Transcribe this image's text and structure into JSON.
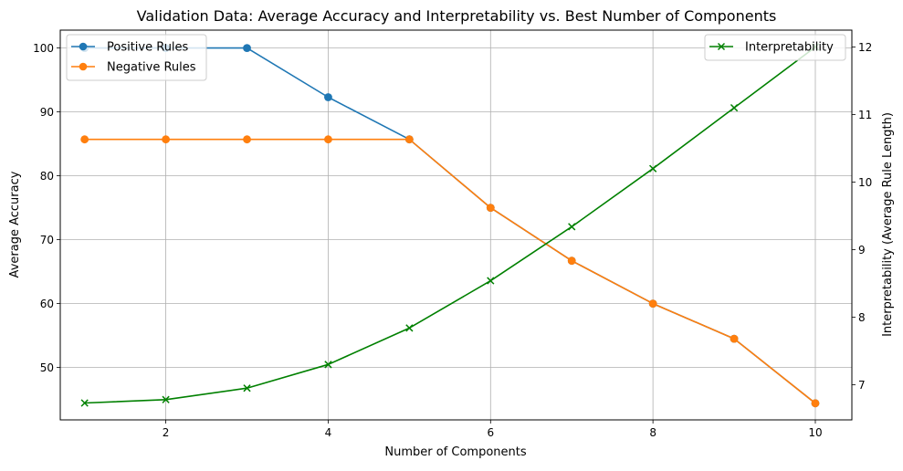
{
  "chart_data": {
    "type": "line",
    "title": "Validation Data: Average Accuracy and Interpretability vs. Best Number of Components",
    "xlabel": "Number of Components",
    "ylabel": "Average Accuracy",
    "y2label": "Interpretability (Average Rule Length)",
    "x": [
      1,
      2,
      3,
      4,
      5,
      6,
      7,
      8,
      9,
      10
    ],
    "xlim": [
      0.7,
      10.45
    ],
    "ylim": [
      41.8,
      102.8
    ],
    "y2lim": [
      6.48,
      12.25
    ],
    "xticks": [
      "2",
      "4",
      "6",
      "8",
      "10"
    ],
    "yticks": [
      "50",
      "60",
      "70",
      "80",
      "90",
      "100"
    ],
    "y2ticks": [
      "7",
      "8",
      "9",
      "10",
      "11",
      "12"
    ],
    "grid": true,
    "series": [
      {
        "name": "Positive Rules",
        "axis": "left",
        "color": "#1f77b4",
        "marker": "circle",
        "values": [
          100,
          100,
          100,
          92.3,
          85.7,
          75.0,
          66.7,
          60.0,
          54.5,
          44.4
        ]
      },
      {
        "name": "Negative Rules",
        "axis": "left",
        "color": "#ff7f0e",
        "marker": "circle",
        "values": [
          85.7,
          85.7,
          85.7,
          85.7,
          85.7,
          75.0,
          66.7,
          60.0,
          54.5,
          44.4
        ]
      },
      {
        "name": "Interpretability",
        "axis": "right",
        "color": "#008000",
        "marker": "x",
        "values": [
          6.73,
          6.78,
          6.95,
          7.3,
          7.84,
          8.54,
          9.34,
          10.2,
          11.1,
          12.0
        ]
      }
    ],
    "legend_left": {
      "placement": "upper-left",
      "entries": [
        "Positive Rules",
        "Negative Rules"
      ]
    },
    "legend_right": {
      "placement": "upper-right",
      "entries": [
        "Interpretability"
      ]
    }
  }
}
